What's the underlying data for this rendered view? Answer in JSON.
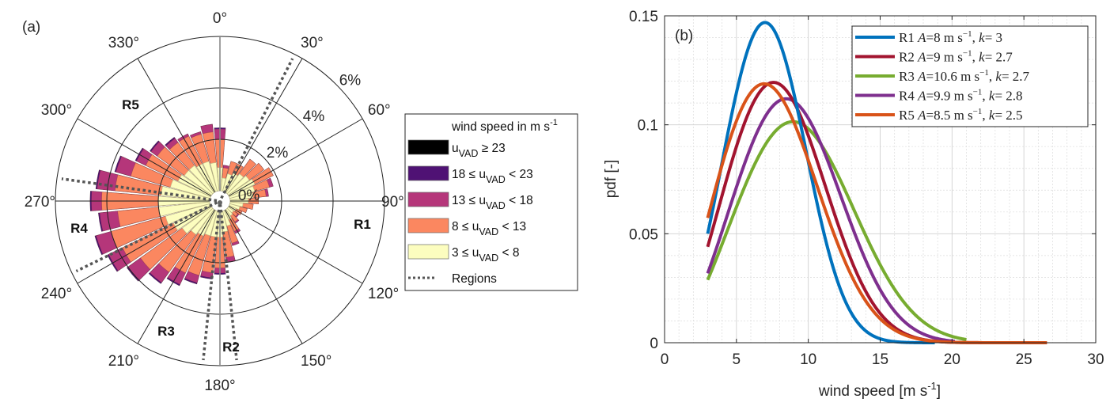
{
  "chart_data": [
    {
      "type": "polar-bar",
      "panel_label": "(a)",
      "title": "",
      "angle_ticks": [
        "0°",
        "30°",
        "60°",
        "90°",
        "120°",
        "150°",
        "180°",
        "210°",
        "240°",
        "270°",
        "300°",
        "330°"
      ],
      "radial_ticks": [
        "0%",
        "2%",
        "4%",
        "6%"
      ],
      "radial_values": [
        0,
        2,
        4,
        6
      ],
      "rlim": [
        0,
        6
      ],
      "legend_title": "wind speed in m s^-1",
      "legend": [
        {
          "label_main": "u",
          "label_sub": "VAD",
          "label_rest": " ≥ 23",
          "prefix": "",
          "color": "#000000"
        },
        {
          "label_main": "u",
          "label_sub": "VAD",
          "label_rest": " < 23",
          "prefix": "18 ≤ ",
          "color": "#4f1274"
        },
        {
          "label_main": "u",
          "label_sub": "VAD",
          "label_rest": " < 18",
          "prefix": "13 ≤ ",
          "color": "#b5367a"
        },
        {
          "label_main": "u",
          "label_sub": "VAD",
          "label_rest": " < 13",
          "prefix": "8 ≤ ",
          "color": "#fb8760"
        },
        {
          "label_main": "u",
          "label_sub": "VAD",
          "label_rest": " < 8",
          "prefix": "3 ≤ ",
          "color": "#fcfdbf"
        }
      ],
      "legend_regions_label": "Regions",
      "regions": [
        {
          "name": "R1",
          "angle_label_deg": 100
        },
        {
          "name": "R2",
          "angle_label_deg": 172
        },
        {
          "name": "R3",
          "angle_label_deg": 205
        },
        {
          "name": "R4",
          "angle_label_deg": 255
        },
        {
          "name": "R5",
          "angle_label_deg": 322
        }
      ],
      "region_boundaries_deg": [
        27,
        174,
        186,
        244,
        278
      ],
      "bin_width_deg": 10,
      "bins_deg": [
        0,
        10,
        20,
        30,
        40,
        50,
        60,
        70,
        80,
        90,
        100,
        110,
        120,
        130,
        140,
        150,
        160,
        170,
        180,
        190,
        200,
        210,
        220,
        230,
        240,
        250,
        260,
        270,
        280,
        290,
        300,
        310,
        320,
        330,
        340,
        350
      ],
      "series": [
        {
          "name": "3 ≤ uVAD < 8",
          "cumulative_pct": [
            0.9,
            0.5,
            0.7,
            0.8,
            0.9,
            1.0,
            1.1,
            1.0,
            0.9,
            0.7,
            0.5,
            0.4,
            0.3,
            0.25,
            0.3,
            0.4,
            0.6,
            0.8,
            1.0,
            1.0,
            1.0,
            1.1,
            1.2,
            1.4,
            1.6,
            1.8,
            2.0,
            2.0,
            1.9,
            1.6,
            1.4,
            1.3,
            1.3,
            1.2,
            1.2,
            1.1
          ]
        },
        {
          "name": "8 ≤ uVAD < 13",
          "cumulative_pct": [
            2.0,
            0.9,
            1.2,
            1.2,
            1.6,
            1.7,
            1.9,
            1.6,
            1.4,
            1.1,
            0.9,
            0.7,
            0.55,
            0.45,
            0.6,
            0.9,
            1.3,
            1.8,
            2.2,
            2.4,
            2.6,
            2.7,
            3.0,
            3.4,
            3.8,
            4.0,
            3.6,
            4.2,
            3.7,
            3.2,
            2.8,
            2.6,
            2.4,
            2.4,
            2.3,
            2.3
          ]
        },
        {
          "name": "13 ≤ uVAD < 18",
          "cumulative_pct": [
            2.4,
            1.0,
            1.2,
            1.2,
            1.6,
            1.7,
            1.9,
            1.75,
            1.5,
            1.1,
            0.9,
            0.7,
            0.55,
            0.5,
            0.65,
            1.0,
            1.4,
            2.0,
            2.4,
            2.6,
            2.9,
            3.2,
            3.5,
            4.0,
            4.4,
            4.6,
            4.3,
            4.6,
            4.4,
            3.8,
            3.2,
            2.9,
            2.6,
            2.5,
            2.4,
            2.6
          ]
        },
        {
          "name": "18 ≤ uVAD < 23",
          "cumulative_pct": [
            2.45,
            1.0,
            1.2,
            1.2,
            1.6,
            1.7,
            1.9,
            1.75,
            1.5,
            1.1,
            0.9,
            0.7,
            0.55,
            0.5,
            0.65,
            1.0,
            1.4,
            2.0,
            2.45,
            2.65,
            2.95,
            3.25,
            3.55,
            4.05,
            4.45,
            4.65,
            4.35,
            4.65,
            4.45,
            3.85,
            3.25,
            2.95,
            2.65,
            2.5,
            2.4,
            2.6
          ]
        },
        {
          "name": "uVAD ≥ 23",
          "cumulative_pct": [
            2.45,
            1.0,
            1.2,
            1.2,
            1.6,
            1.7,
            1.9,
            1.75,
            1.5,
            1.1,
            0.9,
            0.7,
            0.55,
            0.5,
            0.65,
            1.0,
            1.4,
            2.0,
            2.45,
            2.65,
            2.95,
            3.25,
            3.55,
            4.05,
            4.45,
            4.65,
            4.35,
            4.65,
            4.45,
            3.85,
            3.25,
            2.95,
            2.65,
            2.5,
            2.4,
            2.6
          ]
        }
      ]
    },
    {
      "type": "line",
      "panel_label": "(b)",
      "title": "",
      "xlabel": "wind speed [m s^-1]",
      "ylabel": "pdf [-]",
      "xlim": [
        0,
        30
      ],
      "ylim": [
        0,
        0.15
      ],
      "xticks": [
        0,
        5,
        10,
        15,
        20,
        25,
        30
      ],
      "xtick_labels": [
        "0",
        "5",
        "10",
        "15",
        "20",
        "25",
        "30"
      ],
      "yticks": [
        0,
        0.05,
        0.1,
        0.15
      ],
      "ytick_labels": [
        "0",
        "0.05",
        "0.1",
        "0.15"
      ],
      "grid": true,
      "minor_grid": true,
      "legend_position": "top-right",
      "series": [
        {
          "name": "R1",
          "legend": "R1 A=8 m s^-1, k= 3",
          "A": 8,
          "k": 3,
          "x_range": [
            3,
            18.8
          ],
          "color": "#0072bd"
        },
        {
          "name": "R2",
          "legend": "R2 A=9 m s^-1, k= 2.7",
          "A": 9,
          "k": 2.7,
          "x_range": [
            3,
            26.6
          ],
          "color": "#a2142f"
        },
        {
          "name": "R3",
          "legend": "R3 A=10.6 m s^-1, k= 2.7",
          "A": 10.6,
          "k": 2.7,
          "x_range": [
            3,
            21
          ],
          "color": "#77ac30"
        },
        {
          "name": "R4",
          "legend": "R4 A=9.9 m s^-1, k= 2.8",
          "A": 9.9,
          "k": 2.8,
          "x_range": [
            3,
            20.2
          ],
          "color": "#7e2f8e"
        },
        {
          "name": "R5",
          "legend": "R5 A=8.5 m s^-1, k= 2.5",
          "A": 8.5,
          "k": 2.5,
          "x_range": [
            3,
            26.6
          ],
          "color": "#d95319"
        }
      ]
    }
  ]
}
